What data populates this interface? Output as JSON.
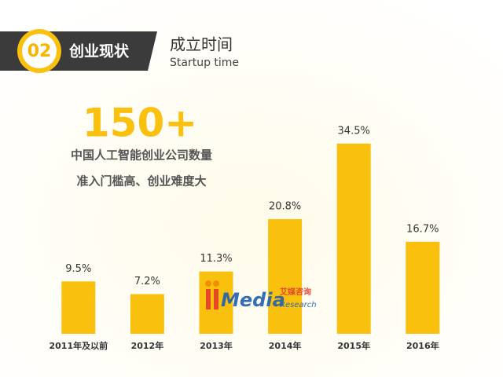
{
  "header": {
    "number": "02",
    "section": "创业现状",
    "title": "成立时间",
    "subtitle": "Startup time"
  },
  "chart_data": {
    "type": "bar",
    "title": "150+",
    "subtitle": "中国人工智能创业公司数量",
    "annotation": "准入门槛高、创业难度大",
    "categories": [
      "2011年及以前",
      "2012年",
      "2013年",
      "2014年",
      "2015年",
      "2016年"
    ],
    "values": [
      9.5,
      7.2,
      11.3,
      20.8,
      34.5,
      16.7
    ],
    "value_labels": [
      "9.5%",
      "7.2%",
      "11.3%",
      "20.8%",
      "34.5%",
      "16.7%"
    ],
    "color": "#f9c10e"
  },
  "watermark": {
    "brand": "Media",
    "name": "艾媒咨询",
    "sub": "Research"
  }
}
